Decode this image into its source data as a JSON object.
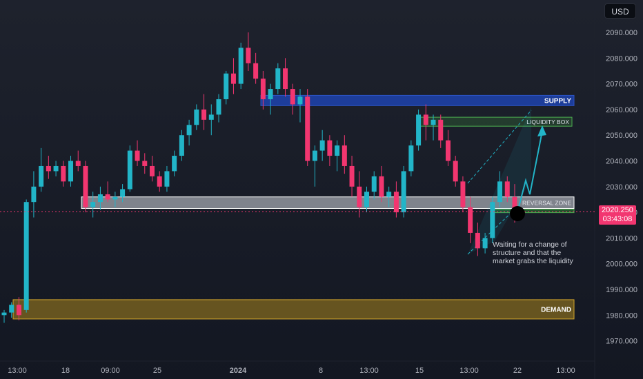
{
  "currency_button": "USD",
  "current_price": {
    "value": "2020.250",
    "countdown": "03:43:08",
    "color": "#f23670"
  },
  "colors": {
    "up": "#22b5c8",
    "down": "#f23670",
    "supply": "#1e3fa0",
    "demand": "#b8901c",
    "liquidity": "#3d8a3d",
    "reversal": "#d5d9e0"
  },
  "annotation": "Waiting for a change of\nstructure and that the\nmarket grabs the liquidity",
  "chart_data": {
    "type": "candlestick",
    "title": "",
    "ylim": [
      1962,
      2098
    ],
    "y_ticks": [
      "2090.000",
      "2080.000",
      "2070.000",
      "2060.000",
      "2050.000",
      "2040.000",
      "2030.000",
      "2020.000",
      "2010.000",
      "2000.000",
      "1990.000",
      "1980.000",
      "1970.000"
    ],
    "x_ticks": [
      "13:00",
      "18",
      "09:00",
      "25",
      "2024",
      "8",
      "13:00",
      "15",
      "13:00",
      "22",
      "13:00"
    ],
    "zones": [
      {
        "label": "SUPPLY",
        "y_range": [
          2061.5,
          2065.5
        ]
      },
      {
        "label": "LIQUIDITY BOX",
        "y_range": [
          2053.5,
          2057
        ]
      },
      {
        "label": "REVERSAL ZONE",
        "y_range": [
          2021.5,
          2026
        ]
      },
      {
        "label": "DEMAND",
        "y_range": [
          1978.5,
          1986
        ]
      }
    ],
    "series": [
      {
        "values": [
          [
            1980,
            1982,
            1977,
            1981
          ],
          [
            1981,
            1985,
            1979,
            1984
          ],
          [
            1984,
            1987,
            1978,
            1980
          ],
          [
            1982,
            2025,
            1981,
            2024
          ],
          [
            2024,
            2036,
            2018,
            2030
          ],
          [
            2030,
            2045,
            2028,
            2038
          ],
          [
            2038,
            2042,
            2033,
            2036
          ],
          [
            2036,
            2040,
            2034,
            2038
          ],
          [
            2038,
            2040,
            2030,
            2032
          ],
          [
            2032,
            2042,
            2030,
            2040
          ],
          [
            2040,
            2044,
            2036,
            2038
          ],
          [
            2038,
            2040,
            2020,
            2022
          ],
          [
            2022,
            2028,
            2018,
            2024
          ],
          [
            2024,
            2030,
            2021,
            2027
          ],
          [
            2027,
            2032,
            2024,
            2025
          ],
          [
            2025,
            2028,
            2022,
            2026
          ],
          [
            2026,
            2031,
            2024,
            2029
          ],
          [
            2029,
            2046,
            2028,
            2044
          ],
          [
            2044,
            2048,
            2038,
            2040
          ],
          [
            2040,
            2043,
            2035,
            2038
          ],
          [
            2038,
            2042,
            2032,
            2034
          ],
          [
            2034,
            2036,
            2028,
            2030
          ],
          [
            2030,
            2038,
            2028,
            2036
          ],
          [
            2036,
            2044,
            2034,
            2042
          ],
          [
            2042,
            2052,
            2040,
            2050
          ],
          [
            2050,
            2056,
            2046,
            2054
          ],
          [
            2054,
            2062,
            2052,
            2060
          ],
          [
            2060,
            2066,
            2052,
            2056
          ],
          [
            2056,
            2062,
            2050,
            2058
          ],
          [
            2058,
            2066,
            2055,
            2064
          ],
          [
            2064,
            2075,
            2062,
            2074
          ],
          [
            2074,
            2080,
            2066,
            2070
          ],
          [
            2070,
            2086,
            2068,
            2084
          ],
          [
            2084,
            2090,
            2075,
            2078
          ],
          [
            2078,
            2082,
            2070,
            2072
          ],
          [
            2072,
            2075,
            2060,
            2064
          ],
          [
            2064,
            2070,
            2058,
            2068
          ],
          [
            2068,
            2078,
            2066,
            2076
          ],
          [
            2076,
            2080,
            2065,
            2068
          ],
          [
            2068,
            2070,
            2058,
            2062
          ],
          [
            2062,
            2068,
            2055,
            2065
          ],
          [
            2065,
            2068,
            2038,
            2040
          ],
          [
            2040,
            2046,
            2030,
            2044
          ],
          [
            2044,
            2052,
            2040,
            2048
          ],
          [
            2048,
            2050,
            2038,
            2042
          ],
          [
            2042,
            2048,
            2036,
            2046
          ],
          [
            2046,
            2050,
            2035,
            2038
          ],
          [
            2038,
            2042,
            2026,
            2030
          ],
          [
            2030,
            2036,
            2018,
            2022
          ],
          [
            2022,
            2030,
            2020,
            2028
          ],
          [
            2028,
            2036,
            2025,
            2034
          ],
          [
            2034,
            2038,
            2024,
            2026
          ],
          [
            2026,
            2030,
            2022,
            2028
          ],
          [
            2028,
            2032,
            2018,
            2020
          ],
          [
            2020,
            2038,
            2018,
            2036
          ],
          [
            2036,
            2048,
            2034,
            2046
          ],
          [
            2046,
            2060,
            2044,
            2058
          ],
          [
            2058,
            2062,
            2048,
            2054
          ],
          [
            2054,
            2058,
            2048,
            2056
          ],
          [
            2056,
            2058,
            2045,
            2048
          ],
          [
            2048,
            2052,
            2038,
            2040
          ],
          [
            2040,
            2042,
            2030,
            2032
          ],
          [
            2032,
            2034,
            2020,
            2022
          ],
          [
            2022,
            2026,
            2008,
            2012
          ],
          [
            2012,
            2016,
            2003,
            2006
          ],
          [
            2006,
            2012,
            2004,
            2010
          ],
          [
            2010,
            2026,
            2008,
            2024
          ],
          [
            2024,
            2036,
            2022,
            2032
          ],
          [
            2032,
            2034,
            2024,
            2026
          ],
          [
            2026,
            2031,
            2016,
            2020
          ]
        ]
      }
    ]
  }
}
